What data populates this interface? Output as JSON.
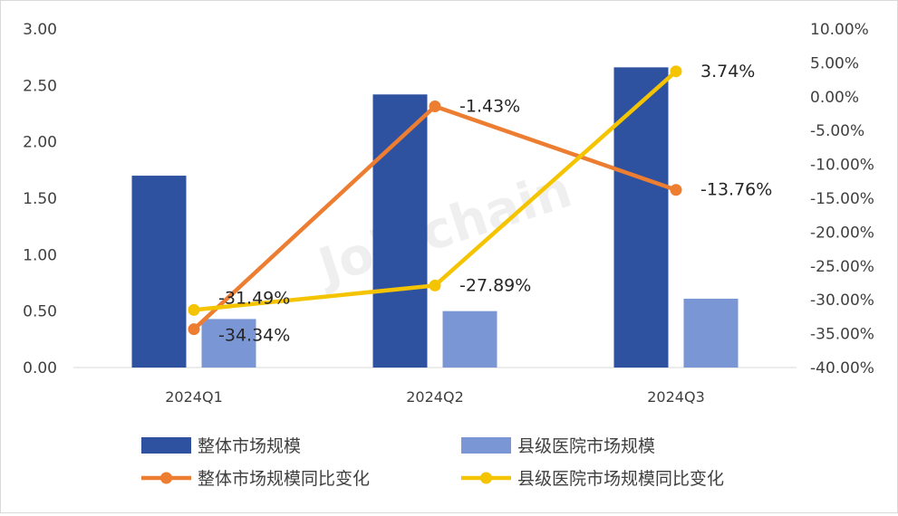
{
  "chart_data": {
    "type": "bar",
    "categories": [
      "2024Q1",
      "2024Q2",
      "2024Q3"
    ],
    "series": [
      {
        "name": "整体市场规模",
        "kind": "bar",
        "axis": "left",
        "color": "#2f52a0",
        "values": [
          1.7,
          2.42,
          2.66
        ]
      },
      {
        "name": "县级医院市场规模",
        "kind": "bar",
        "axis": "left",
        "color": "#7b96d4",
        "values": [
          0.43,
          0.5,
          0.61
        ]
      },
      {
        "name": "整体市场规模同比变化",
        "kind": "line",
        "axis": "right",
        "color": "#ed7d31",
        "values": [
          -34.34,
          -1.43,
          -13.76
        ],
        "labels": [
          "-34.34%",
          "-1.43%",
          "-13.76%"
        ]
      },
      {
        "name": "县级医院市场规模同比变化",
        "kind": "line",
        "axis": "right",
        "color": "#f5c400",
        "values": [
          -31.49,
          -27.89,
          3.74
        ],
        "labels": [
          "-31.49%",
          "-27.89%",
          "3.74%"
        ]
      }
    ],
    "y_left": {
      "ylim": [
        0,
        3.0
      ],
      "ticks": [
        "0.00",
        "0.50",
        "1.00",
        "1.50",
        "2.00",
        "2.50",
        "3.00"
      ]
    },
    "y_right": {
      "ylim": [
        -40,
        10
      ],
      "ticks": [
        "-40.00%",
        "-35.00%",
        "-30.00%",
        "-25.00%",
        "-20.00%",
        "-15.00%",
        "-10.00%",
        "-5.00%",
        "0.00%",
        "5.00%",
        "10.00%"
      ]
    },
    "legend_position": "bottom",
    "grid": false,
    "watermark": "Joinchain"
  }
}
